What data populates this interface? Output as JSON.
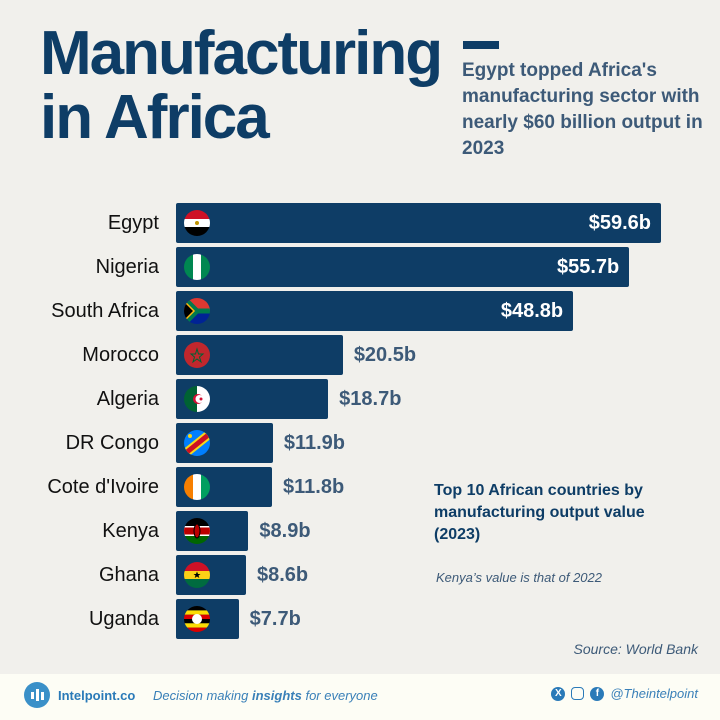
{
  "header": {
    "title_line1": "Manufacturing",
    "title_line2": "in Africa",
    "subtitle": "Egypt topped Africa's manufacturing sector with nearly $60 billion output in 2023"
  },
  "chart_data": {
    "type": "bar",
    "orientation": "horizontal",
    "categories": [
      "Egypt",
      "Nigeria",
      "South Africa",
      "Morocco",
      "Algeria",
      "DR Congo",
      "Cote d'Ivoire",
      "Kenya",
      "Ghana",
      "Uganda"
    ],
    "values": [
      59.6,
      55.7,
      48.8,
      20.5,
      18.7,
      11.9,
      11.8,
      8.9,
      8.6,
      7.7
    ],
    "value_labels": [
      "$59.6b",
      "$55.7b",
      "$48.8b",
      "$20.5b",
      "$18.7b",
      "$11.9b",
      "$11.8b",
      "$8.9b",
      "$8.6b",
      "$7.7b"
    ],
    "flags": [
      "egypt-flag",
      "nigeria-flag",
      "south-africa-flag",
      "morocco-flag",
      "algeria-flag",
      "dr-congo-flag",
      "cote-divoire-flag",
      "kenya-flag",
      "ghana-flag",
      "uganda-flag"
    ],
    "unit": "billion USD",
    "bar_color": "#0e3d66",
    "legend": "Top 10 African countries by manufacturing output value (2023)",
    "annotation": "Kenya’s value is that of 2022",
    "source": "Source: World Bank"
  },
  "footer": {
    "brand": "Intelpoint.co",
    "tagline_pre": "Decision making ",
    "tagline_bold": "insights",
    "tagline_post": " for everyone",
    "handle": "@Theintelpoint",
    "social_icons": [
      "x-icon",
      "instagram-icon",
      "facebook-icon"
    ]
  }
}
